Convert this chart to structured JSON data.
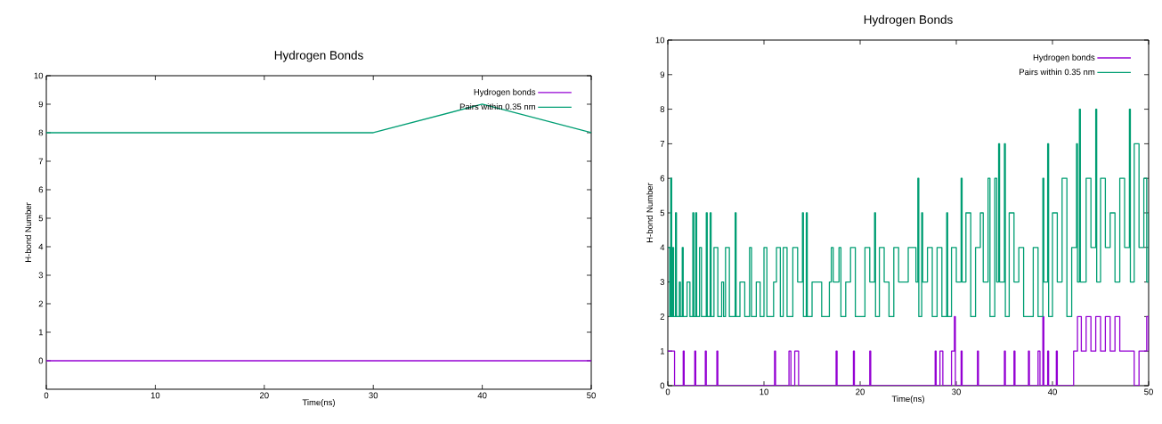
{
  "chart_data": [
    {
      "type": "line",
      "title": "Hydrogen Bonds",
      "xlabel": "Time(ns)",
      "ylabel": "H-bond Number",
      "xlim": [
        0,
        50
      ],
      "xticks": [
        0,
        10,
        20,
        30,
        40,
        50
      ],
      "ylim": [
        -1,
        10
      ],
      "yticks": [
        0,
        1,
        2,
        3,
        4,
        5,
        6,
        7,
        8,
        9,
        10
      ],
      "legend": "top right",
      "series": [
        {
          "name": "Hydrogen bonds",
          "color": "#9400d3",
          "x": [
            0,
            10,
            20,
            30,
            40,
            50
          ],
          "values": [
            0,
            0,
            0,
            0,
            0,
            0
          ]
        },
        {
          "name": "Pairs within 0.35 nm",
          "color": "#009e73",
          "x": [
            0,
            10,
            20,
            30,
            40,
            50
          ],
          "values": [
            8,
            8,
            8,
            8,
            9,
            8
          ]
        }
      ]
    },
    {
      "type": "step",
      "title": "Hydrogen Bonds",
      "xlabel": "Time(ns)",
      "ylabel": "H-bond Number",
      "xlim": [
        0,
        50
      ],
      "xticks": [
        0,
        10,
        20,
        30,
        40,
        50
      ],
      "ylim": [
        0,
        10
      ],
      "yticks": [
        0,
        1,
        2,
        3,
        4,
        5,
        6,
        7,
        8,
        9,
        10
      ],
      "legend": "top right",
      "series": [
        {
          "name": "Hydrogen bonds",
          "color": "#9400d3",
          "x": [
            0,
            0.7,
            1.6,
            1.7,
            2.8,
            2.9,
            3.9,
            4.0,
            5.1,
            5.2,
            11.1,
            11.2,
            12.6,
            12.8,
            13.2,
            13.6,
            17.5,
            17.6,
            19.3,
            19.4,
            21.0,
            21.1,
            27.8,
            27.9,
            28.3,
            28.6,
            29.5,
            29.8,
            29.9,
            30.5,
            30.6,
            32.2,
            32.3,
            35.0,
            35.1,
            36.0,
            36.1,
            37.5,
            37.6,
            38.5,
            38.7,
            39.0,
            39.1,
            39.5,
            39.6,
            40.4,
            40.5,
            42.2,
            42.6,
            43.0,
            43.5,
            44.0,
            44.5,
            45.0,
            45.5,
            46.0,
            46.5,
            47.0,
            47.8,
            48.5,
            49.0,
            49.8,
            50.0
          ],
          "values": [
            1,
            0,
            1,
            0,
            1,
            0,
            1,
            0,
            1,
            0,
            1,
            0,
            1,
            0,
            1,
            0,
            1,
            0,
            1,
            0,
            1,
            0,
            1,
            0,
            1,
            0,
            1,
            2,
            0,
            1,
            0,
            1,
            0,
            1,
            0,
            1,
            0,
            1,
            0,
            1,
            0,
            2,
            0,
            1,
            0,
            1,
            0,
            1,
            2,
            1,
            2,
            1,
            2,
            1,
            2,
            1,
            2,
            1,
            1,
            0,
            1,
            2,
            1
          ]
        },
        {
          "name": "Pairs within 0.35 nm",
          "color": "#009e73",
          "x": [
            0,
            0.2,
            0.3,
            0.4,
            0.5,
            0.6,
            0.8,
            0.9,
            1.2,
            1.3,
            1.5,
            1.6,
            2.0,
            2.3,
            2.6,
            2.7,
            2.9,
            3.0,
            3.3,
            3.5,
            4.0,
            4.1,
            4.4,
            4.5,
            4.8,
            5.2,
            5.6,
            5.8,
            6.0,
            6.4,
            7.0,
            7.1,
            7.5,
            8.0,
            8.5,
            8.7,
            9.2,
            9.6,
            10.0,
            10.3,
            11.0,
            11.3,
            11.7,
            12.0,
            12.4,
            13.0,
            13.5,
            14.0,
            14.1,
            14.4,
            14.5,
            15.0,
            16.0,
            16.8,
            17.0,
            17.2,
            17.8,
            18.0,
            18.5,
            19.0,
            19.5,
            20.5,
            21.0,
            21.5,
            21.6,
            22.0,
            22.5,
            23.0,
            23.5,
            24.0,
            25.0,
            25.8,
            26.0,
            26.1,
            26.4,
            26.5,
            27.0,
            27.5,
            28.0,
            28.5,
            29.0,
            29.1,
            29.5,
            30.0,
            30.5,
            30.6,
            31.0,
            31.5,
            32.0,
            32.5,
            32.8,
            33.3,
            33.5,
            34.0,
            34.2,
            34.4,
            34.5,
            35.0,
            35.1,
            35.5,
            36.0,
            36.5,
            37.0,
            38.0,
            38.5,
            39.0,
            39.1,
            39.5,
            39.6,
            40.0,
            40.5,
            41.0,
            41.5,
            42.0,
            42.5,
            42.6,
            42.8,
            42.9,
            43.5,
            44.0,
            44.5,
            44.6,
            45.0,
            45.5,
            46.0,
            46.5,
            47.0,
            47.5,
            48.0,
            48.1,
            48.5,
            49.0,
            49.5,
            49.8,
            50.0
          ],
          "values": [
            4,
            2,
            6,
            2,
            4,
            2,
            5,
            2,
            3,
            2,
            4,
            2,
            3,
            2,
            5,
            2,
            5,
            2,
            4,
            2,
            5,
            2,
            5,
            2,
            4,
            2,
            3,
            2,
            4,
            2,
            5,
            2,
            3,
            2,
            4,
            2,
            3,
            2,
            4,
            2,
            3,
            4,
            2,
            4,
            2,
            4,
            3,
            5,
            2,
            5,
            2,
            3,
            2,
            3,
            4,
            3,
            4,
            2,
            3,
            4,
            2,
            4,
            3,
            5,
            2,
            4,
            3,
            2,
            4,
            3,
            4,
            3,
            6,
            2,
            5,
            3,
            4,
            2,
            4,
            2,
            5,
            2,
            4,
            3,
            6,
            3,
            5,
            2,
            4,
            5,
            3,
            6,
            2,
            6,
            3,
            7,
            3,
            7,
            2,
            5,
            3,
            4,
            2,
            4,
            2,
            6,
            3,
            7,
            2,
            5,
            3,
            6,
            2,
            4,
            7,
            3,
            8,
            3,
            6,
            4,
            8,
            3,
            6,
            4,
            5,
            3,
            6,
            4,
            8,
            3,
            7,
            4,
            6,
            3,
            5
          ]
        }
      ]
    }
  ]
}
